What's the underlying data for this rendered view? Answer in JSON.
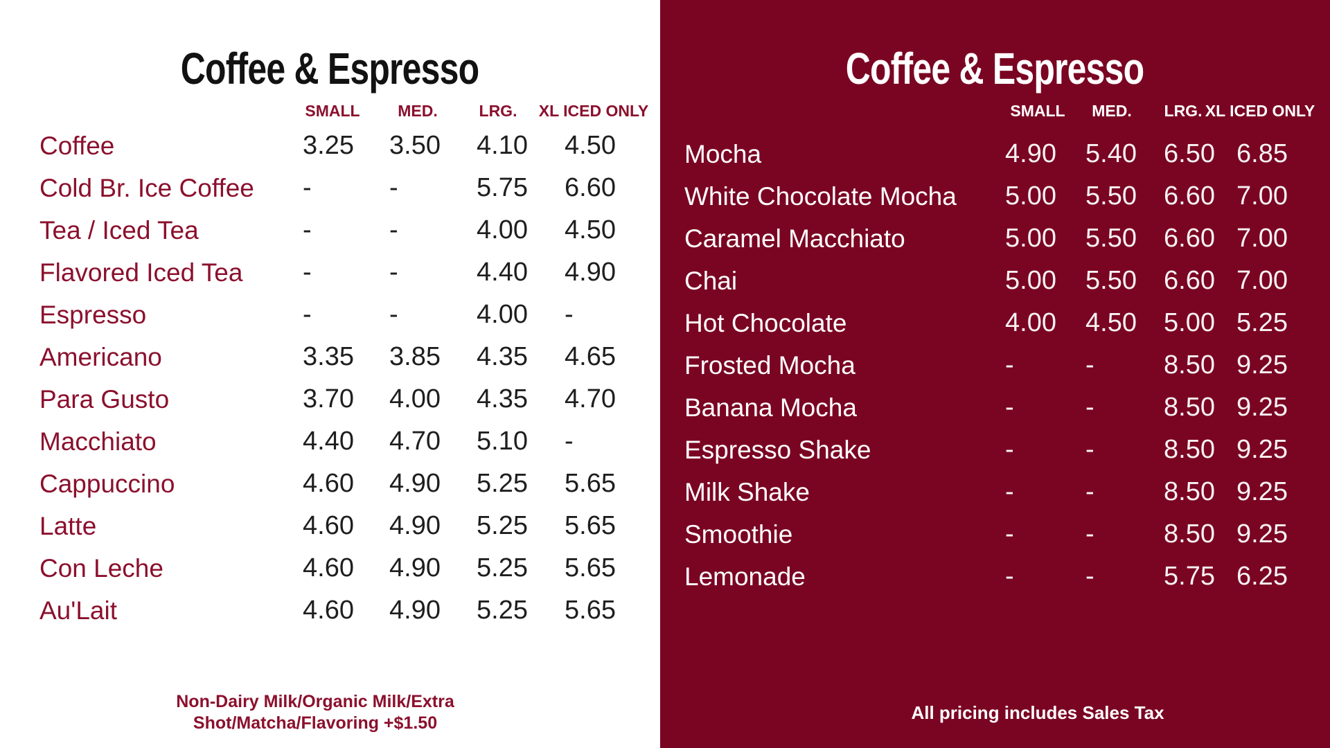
{
  "colors": {
    "background_left": "#ffffff",
    "background_right": "#7a0523",
    "accent_maroon": "#8b102d",
    "price_text": "#1e1e1e",
    "light_text": "#ffffff"
  },
  "panels": [
    {
      "title": "Coffee & Espresso",
      "columns": [
        "SMALL",
        "MED.",
        "LRG.",
        "XL ICED ONLY"
      ],
      "items": [
        {
          "name": "Coffee",
          "prices": [
            "3.25",
            "3.50",
            "4.10",
            "4.50"
          ]
        },
        {
          "name": "Cold Br. Ice Coffee",
          "prices": [
            "-",
            "-",
            "5.75",
            "6.60"
          ]
        },
        {
          "name": "Tea / Iced Tea",
          "prices": [
            "-",
            "-",
            "4.00",
            "4.50"
          ]
        },
        {
          "name": "Flavored Iced Tea",
          "prices": [
            "-",
            "-",
            "4.40",
            "4.90"
          ]
        },
        {
          "name": "Espresso",
          "prices": [
            "-",
            "-",
            "4.00",
            "-"
          ]
        },
        {
          "name": "Americano",
          "prices": [
            "3.35",
            "3.85",
            "4.35",
            "4.65"
          ]
        },
        {
          "name": "Para Gusto",
          "prices": [
            "3.70",
            "4.00",
            "4.35",
            "4.70"
          ]
        },
        {
          "name": "Macchiato",
          "prices": [
            "4.40",
            "4.70",
            "5.10",
            "-"
          ]
        },
        {
          "name": "Cappuccino",
          "prices": [
            "4.60",
            "4.90",
            "5.25",
            "5.65"
          ]
        },
        {
          "name": "Latte",
          "prices": [
            "4.60",
            "4.90",
            "5.25",
            "5.65"
          ]
        },
        {
          "name": "Con Leche",
          "prices": [
            "4.60",
            "4.90",
            "5.25",
            "5.65"
          ]
        },
        {
          "name": "Au'Lait",
          "prices": [
            "4.60",
            "4.90",
            "5.25",
            "5.65"
          ]
        }
      ],
      "footer": "Non-Dairy Milk/Organic Milk/Extra Shot/Matcha/Flavoring +$1.50"
    },
    {
      "title": "Coffee & Espresso",
      "columns": [
        "SMALL",
        "MED.",
        "LRG.",
        "XL ICED ONLY"
      ],
      "items": [
        {
          "name": "Mocha",
          "prices": [
            "4.90",
            "5.40",
            "6.50",
            "6.85"
          ]
        },
        {
          "name": "White Chocolate Mocha",
          "prices": [
            "5.00",
            "5.50",
            "6.60",
            "7.00"
          ]
        },
        {
          "name": "Caramel Macchiato",
          "prices": [
            "5.00",
            "5.50",
            "6.60",
            "7.00"
          ]
        },
        {
          "name": "Chai",
          "prices": [
            "5.00",
            "5.50",
            "6.60",
            "7.00"
          ]
        },
        {
          "name": "Hot Chocolate",
          "prices": [
            "4.00",
            "4.50",
            "5.00",
            "5.25"
          ]
        },
        {
          "name": "Frosted Mocha",
          "prices": [
            "-",
            "-",
            "8.50",
            "9.25"
          ]
        },
        {
          "name": "Banana Mocha",
          "prices": [
            "-",
            "-",
            "8.50",
            "9.25"
          ]
        },
        {
          "name": "Espresso Shake",
          "prices": [
            "-",
            "-",
            "8.50",
            "9.25"
          ]
        },
        {
          "name": "Milk Shake",
          "prices": [
            "-",
            "-",
            "8.50",
            "9.25"
          ]
        },
        {
          "name": "Smoothie",
          "prices": [
            "-",
            "-",
            "8.50",
            "9.25"
          ]
        },
        {
          "name": "Lemonade",
          "prices": [
            "-",
            "-",
            "5.75",
            "6.25"
          ]
        }
      ],
      "footer": "All pricing includes Sales Tax"
    }
  ]
}
